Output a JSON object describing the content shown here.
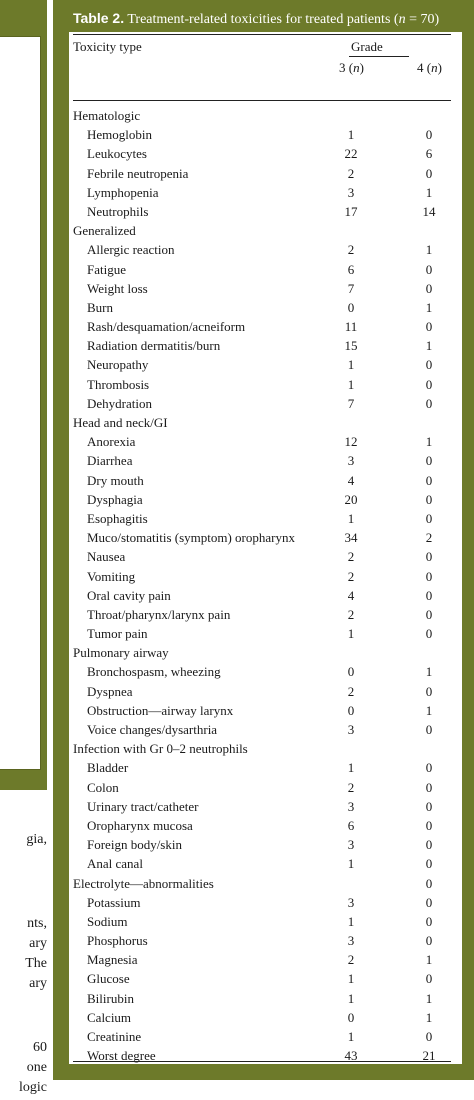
{
  "left_fragments": [
    "gia,",
    "nts,",
    "ary",
    "The",
    "ary",
    "60",
    "one",
    "logic"
  ],
  "table": {
    "caption_label": "Table 2.",
    "caption_text": "Treatment-related toxicities for treated patients (",
    "caption_n": "n",
    "caption_tail": " = 70)",
    "col_toxicity": "Toxicity type",
    "col_grade": "Grade",
    "col_g3": "3 (",
    "col_g4": "4 (",
    "col_n": "n",
    "col_close": ")",
    "rows": [
      {
        "label": "Hematologic",
        "g3": "",
        "g4": ""
      },
      {
        "label": "Hemoglobin",
        "g3": "1",
        "g4": "0"
      },
      {
        "label": "Leukocytes",
        "g3": "22",
        "g4": "6"
      },
      {
        "label": "Febrile neutropenia",
        "g3": "2",
        "g4": "0"
      },
      {
        "label": "Lymphopenia",
        "g3": "3",
        "g4": "1"
      },
      {
        "label": "Neutrophils",
        "g3": "17",
        "g4": "14"
      },
      {
        "label": "Generalized",
        "g3": "",
        "g4": ""
      },
      {
        "label": "Allergic reaction",
        "g3": "2",
        "g4": "1"
      },
      {
        "label": "Fatigue",
        "g3": "6",
        "g4": "0"
      },
      {
        "label": "Weight loss",
        "g3": "7",
        "g4": "0"
      },
      {
        "label": "Burn",
        "g3": "0",
        "g4": "1"
      },
      {
        "label": "Rash/desquamation/acneiform",
        "g3": "11",
        "g4": "0"
      },
      {
        "label": "Radiation dermatitis/burn",
        "g3": "15",
        "g4": "1"
      },
      {
        "label": "Neuropathy",
        "g3": "1",
        "g4": "0"
      },
      {
        "label": "Thrombosis",
        "g3": "1",
        "g4": "0"
      },
      {
        "label": "Dehydration",
        "g3": "7",
        "g4": "0"
      },
      {
        "label": "Head and neck/GI",
        "g3": "",
        "g4": ""
      },
      {
        "label": "Anorexia",
        "g3": "12",
        "g4": "1"
      },
      {
        "label": "Diarrhea",
        "g3": "3",
        "g4": "0"
      },
      {
        "label": "Dry mouth",
        "g3": "4",
        "g4": "0"
      },
      {
        "label": "Dysphagia",
        "g3": "20",
        "g4": "0"
      },
      {
        "label": "Esophagitis",
        "g3": "1",
        "g4": "0"
      },
      {
        "label": "Muco/stomatitis (symptom) oropharynx",
        "g3": "34",
        "g4": "2"
      },
      {
        "label": "Nausea",
        "g3": "2",
        "g4": "0"
      },
      {
        "label": "Vomiting",
        "g3": "2",
        "g4": "0"
      },
      {
        "label": "Oral cavity pain",
        "g3": "4",
        "g4": "0"
      },
      {
        "label": "Throat/pharynx/larynx pain",
        "g3": "2",
        "g4": "0"
      },
      {
        "label": "Tumor pain",
        "g3": "1",
        "g4": "0"
      },
      {
        "label": "Pulmonary airway",
        "g3": "",
        "g4": ""
      },
      {
        "label": "Bronchospasm, wheezing",
        "g3": "0",
        "g4": "1"
      },
      {
        "label": "Dyspnea",
        "g3": "2",
        "g4": "0"
      },
      {
        "label": "Obstruction—airway larynx",
        "g3": "0",
        "g4": "1"
      },
      {
        "label": "Voice changes/dysarthria",
        "g3": "3",
        "g4": "0"
      },
      {
        "label": "Infection with Gr 0–2 neutrophils",
        "g3": "",
        "g4": ""
      },
      {
        "label": "Bladder",
        "g3": "1",
        "g4": "0"
      },
      {
        "label": "Colon",
        "g3": "2",
        "g4": "0"
      },
      {
        "label": "Urinary tract/catheter",
        "g3": "3",
        "g4": "0"
      },
      {
        "label": "Oropharynx mucosa",
        "g3": "6",
        "g4": "0"
      },
      {
        "label": "Foreign body/skin",
        "g3": "3",
        "g4": "0"
      },
      {
        "label": "Anal canal",
        "g3": "1",
        "g4": "0"
      },
      {
        "label": "Electrolyte—abnormalities",
        "g3": "",
        "g4": "0"
      },
      {
        "label": "Potassium",
        "g3": "3",
        "g4": "0"
      },
      {
        "label": "Sodium",
        "g3": "1",
        "g4": "0"
      },
      {
        "label": "Phosphorus",
        "g3": "3",
        "g4": "0"
      },
      {
        "label": "Magnesia",
        "g3": "2",
        "g4": "1"
      },
      {
        "label": "Glucose",
        "g3": "1",
        "g4": "0"
      },
      {
        "label": "Bilirubin",
        "g3": "1",
        "g4": "1"
      },
      {
        "label": "Calcium",
        "g3": "0",
        "g4": "1"
      },
      {
        "label": "Creatinine",
        "g3": "1",
        "g4": "0"
      },
      {
        "label": "Worst degree",
        "g3": "43",
        "g4": "21"
      }
    ]
  }
}
